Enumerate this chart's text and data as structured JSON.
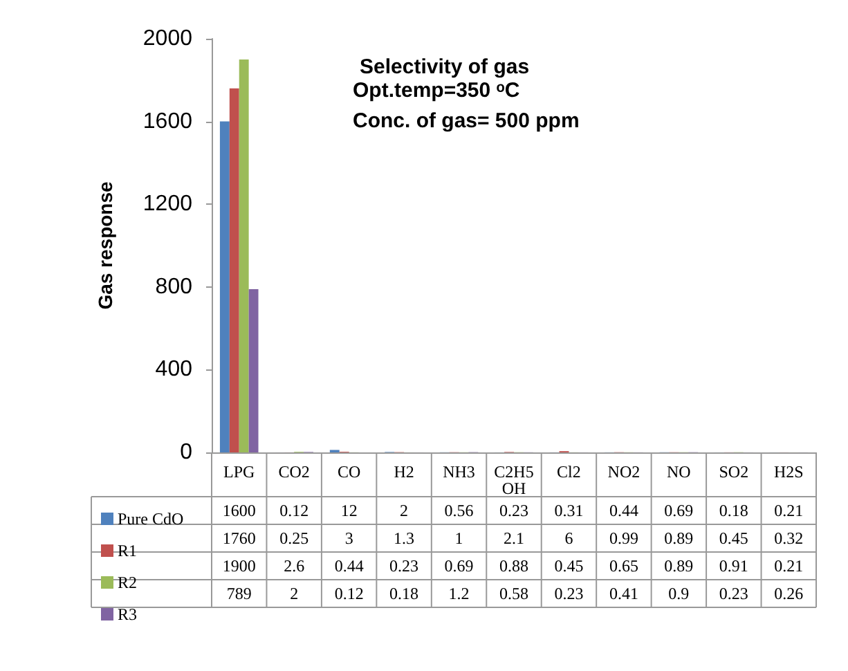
{
  "chart_data": {
    "type": "bar",
    "title": "Selectivity of gas",
    "annotations": [
      "Opt.temp=350 ᵒC",
      "Conc. of gas= 500 ppm"
    ],
    "ylabel": "Gas response",
    "categories": [
      "LPG",
      "CO2",
      "CO",
      "H2",
      "NH3",
      "C2H5OH",
      "Cl2",
      "NO2",
      "NO",
      "SO2",
      "H2S"
    ],
    "series": [
      {
        "name": "Pure CdO",
        "color": "#4f81bd",
        "values": [
          1600,
          0.12,
          12,
          2,
          0.56,
          0.23,
          0.31,
          0.44,
          0.69,
          0.18,
          0.21
        ]
      },
      {
        "name": "R1",
        "color": "#c0504d",
        "values": [
          1760,
          0.25,
          3,
          1.3,
          1,
          2.1,
          6,
          0.99,
          0.89,
          0.45,
          0.32
        ]
      },
      {
        "name": "R2",
        "color": "#9bbb59",
        "values": [
          1900,
          2.6,
          0.44,
          0.23,
          0.69,
          0.88,
          0.45,
          0.65,
          0.89,
          0.91,
          0.21
        ]
      },
      {
        "name": "R3",
        "color": "#8064a2",
        "values": [
          789,
          2,
          0.12,
          0.18,
          1.2,
          0.58,
          0.23,
          0.41,
          0.9,
          0.23,
          0.26
        ]
      }
    ],
    "ylim": [
      0,
      2000
    ],
    "yticks": [
      0,
      400,
      800,
      1200,
      1600,
      2000
    ],
    "grid": false,
    "legend": "bottom left",
    "data_labels": true
  }
}
